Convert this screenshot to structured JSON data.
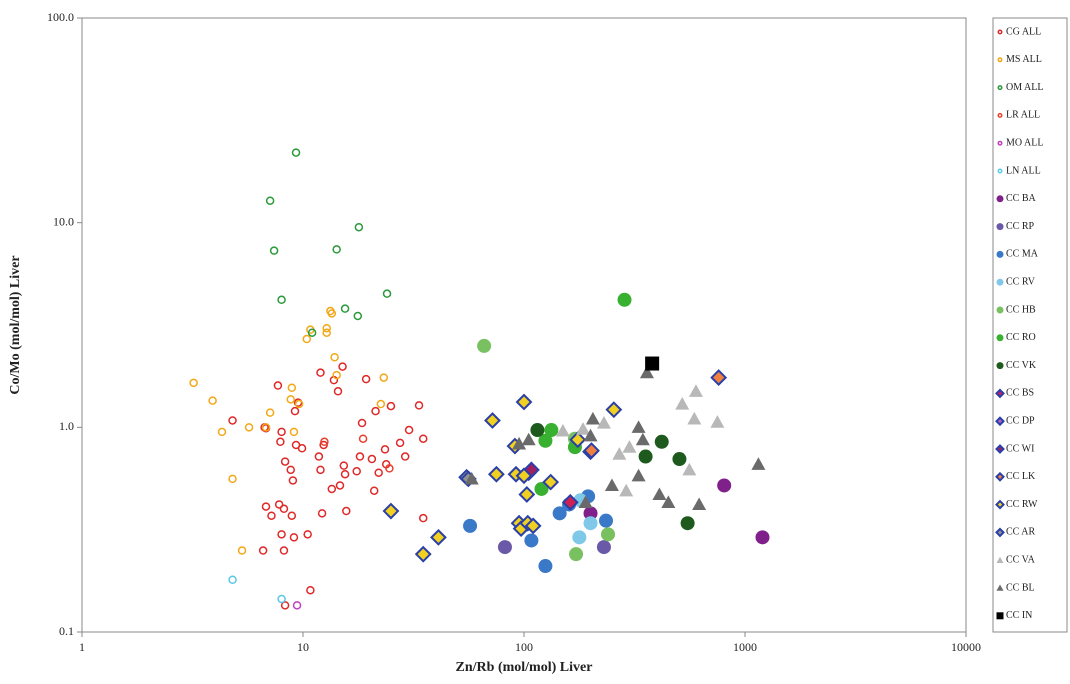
{
  "chart_data": {
    "type": "scatter",
    "x_label": "Zn/Rb (mol/mol) Liver",
    "y_label": "Co/Mo (mol/mol) Liver",
    "xlim": [
      1,
      10000
    ],
    "ylim": [
      0.1,
      100
    ],
    "log_x": true,
    "log_y": true,
    "grid": false,
    "xticks": [
      1,
      10,
      100,
      1000,
      10000
    ],
    "yticks": [
      0.1,
      {
        "value": 1,
        "label": "1.0"
      },
      {
        "value": 10,
        "label": "10.0"
      },
      {
        "value": 100,
        "label": "100.0"
      }
    ],
    "legend": "right",
    "series": [
      {
        "name": "CG ALL",
        "color": "#e02828",
        "marker": "circle-open",
        "x": [
          4.8,
          6.7,
          6.8,
          7.7,
          8.0,
          7.9,
          8.3,
          8.8,
          9.0,
          9.3,
          9.2,
          9.5,
          9.9,
          6.8,
          7.2,
          7.8,
          8.2,
          8.9,
          8.0,
          9.1,
          10.5,
          12.2,
          12.0,
          11.8,
          12.4,
          12.0,
          13.5,
          13.8,
          14.4,
          14.7,
          15.3,
          15.5,
          15.7,
          15.1,
          17.5,
          18.1,
          18.5,
          19.3,
          20.5,
          21.0,
          21.3,
          22.0,
          23.8,
          23.5,
          25.0,
          27.5,
          29.0,
          30.2,
          33.5,
          35.0,
          35.0,
          6.6,
          8.2,
          10.8,
          8.3
        ],
        "values": [
          1.08,
          1.0,
          0.99,
          1.6,
          0.95,
          0.85,
          0.68,
          0.62,
          0.55,
          0.82,
          1.2,
          1.32,
          0.79,
          0.41,
          0.37,
          0.42,
          0.4,
          0.37,
          0.3,
          0.29,
          0.3,
          0.38,
          0.62,
          0.72,
          0.82,
          1.85,
          0.5,
          1.7,
          1.5,
          0.52,
          0.65,
          0.59,
          0.39,
          1.98,
          0.61,
          0.72,
          1.05,
          1.72,
          0.7,
          0.49,
          1.2,
          0.6,
          0.66,
          0.78,
          1.27,
          0.84,
          0.72,
          0.97,
          1.28,
          0.88,
          0.36,
          0.25,
          0.25,
          0.16,
          0.135
        ]
      },
      {
        "name": "MS ALL",
        "color": "#f2a818",
        "marker": "circle-open",
        "x": [
          3.2,
          3.9,
          4.3,
          4.8,
          5.3,
          5.7,
          6.8,
          7.1,
          8.9,
          8.8,
          9.1,
          9.6,
          10.4,
          10.8,
          12.8,
          12.8,
          13.3,
          13.5,
          13.9,
          14.2,
          23.2,
          22.5
        ],
        "values": [
          1.65,
          1.35,
          0.95,
          0.56,
          0.25,
          1.0,
          1.0,
          1.18,
          1.56,
          1.37,
          0.95,
          1.3,
          2.7,
          3.0,
          2.9,
          3.05,
          3.7,
          3.6,
          2.2,
          1.8,
          1.75,
          1.3
        ]
      },
      {
        "name": "OM ALL",
        "color": "#2a9a3a",
        "marker": "circle-open",
        "x": [
          9.3,
          7.1,
          7.4,
          8.0,
          11.0,
          14.2,
          15.5,
          17.7,
          17.9,
          24.0
        ],
        "values": [
          22,
          12.8,
          7.3,
          4.2,
          2.9,
          7.4,
          3.8,
          3.5,
          9.5,
          4.5
        ]
      },
      {
        "name": "LR ALL",
        "color": "#e8402e",
        "marker": "circle-open",
        "x": [
          12.5,
          18.7,
          24.6
        ],
        "values": [
          0.85,
          0.88,
          0.63
        ]
      },
      {
        "name": "MO ALL",
        "color": "#c040c0",
        "marker": "circle-open",
        "x": [
          9.4
        ],
        "values": [
          0.135
        ]
      },
      {
        "name": "LN ALL",
        "color": "#5ac8e8",
        "marker": "circle-open",
        "x": [
          4.8,
          8.0
        ],
        "values": [
          0.18,
          0.145
        ]
      },
      {
        "name": "CC BA",
        "color": "#80208a",
        "marker": "circle",
        "x": [
          200,
          805,
          1200
        ],
        "values": [
          0.38,
          0.52,
          0.29
        ]
      },
      {
        "name": "CC RP",
        "color": "#6a58a8",
        "marker": "circle",
        "x": [
          82,
          230
        ],
        "values": [
          0.26,
          0.26
        ]
      },
      {
        "name": "CC MA",
        "color": "#3a78c8",
        "marker": "circle",
        "x": [
          57,
          108,
          125,
          145,
          160,
          195,
          235
        ],
        "values": [
          0.33,
          0.28,
          0.21,
          0.38,
          0.42,
          0.46,
          0.35
        ]
      },
      {
        "name": "CC RV",
        "color": "#80c8e8",
        "marker": "circle",
        "x": [
          178,
          200,
          180
        ],
        "values": [
          0.29,
          0.34,
          0.44
        ]
      },
      {
        "name": "CC HB",
        "color": "#78c060",
        "marker": "circle",
        "x": [
          66,
          172,
          240,
          170
        ],
        "values": [
          2.5,
          0.24,
          0.3,
          0.88
        ]
      },
      {
        "name": "CC RO",
        "color": "#38b030",
        "marker": "circle",
        "x": [
          285,
          125,
          133,
          170,
          120
        ],
        "values": [
          4.2,
          0.86,
          0.97,
          0.8,
          0.5
        ]
      },
      {
        "name": "CC VK",
        "color": "#1e5a1e",
        "marker": "circle",
        "x": [
          115,
          355,
          420,
          505,
          550
        ],
        "values": [
          0.97,
          0.72,
          0.85,
          0.7,
          0.34
        ]
      },
      {
        "name": "CC BS",
        "color": "#d02050",
        "marker": "diamond",
        "edgecolor": "#2a3fa8",
        "x": [
          162,
          105
        ],
        "values": [
          0.43,
          0.6
        ]
      },
      {
        "name": "CC DP",
        "color": "#b060c0",
        "marker": "diamond",
        "edgecolor": "#2a3fa8",
        "x": [
          200
        ],
        "values": [
          0.76
        ]
      },
      {
        "name": "CC WI",
        "color": "#a02060",
        "marker": "diamond",
        "edgecolor": "#2a3fa8",
        "x": [
          108
        ],
        "values": [
          0.62
        ]
      },
      {
        "name": "CC LK",
        "color": "#f08040",
        "marker": "diamond",
        "edgecolor": "#2a3fa8",
        "x": [
          760,
          202
        ],
        "values": [
          1.75,
          0.77
        ]
      },
      {
        "name": "CC RW",
        "color": "#f0d020",
        "marker": "diamond",
        "edgecolor": "#2a3fa8",
        "x": [
          25,
          35,
          41,
          55,
          72,
          75,
          91,
          92,
          95,
          97,
          100,
          100,
          104,
          103,
          110,
          132,
          175,
          255
        ],
        "values": [
          0.39,
          0.24,
          0.29,
          0.57,
          1.08,
          0.59,
          0.81,
          0.59,
          0.34,
          0.32,
          1.33,
          0.58,
          0.34,
          0.47,
          0.33,
          0.54,
          0.87,
          1.22
        ]
      },
      {
        "name": "CC AR",
        "color": "#909090",
        "marker": "diamond",
        "edgecolor": "#2a3fa8",
        "x": [
          56
        ],
        "values": [
          0.56
        ]
      },
      {
        "name": "CC VA",
        "color": "#b8b8b8",
        "marker": "triangle",
        "x": [
          150,
          185,
          230,
          270,
          290,
          300,
          520,
          560,
          600,
          590,
          750
        ],
        "values": [
          0.96,
          0.98,
          1.05,
          0.74,
          0.49,
          0.8,
          1.3,
          0.62,
          1.5,
          1.1,
          1.06
        ]
      },
      {
        "name": "CC BL",
        "color": "#6a6a6a",
        "marker": "triangle",
        "x": [
          58,
          95,
          105,
          190,
          205,
          200,
          250,
          330,
          330,
          345,
          360,
          410,
          450,
          620,
          1150
        ],
        "values": [
          0.56,
          0.83,
          0.87,
          0.43,
          1.1,
          0.91,
          0.52,
          1.0,
          0.58,
          0.87,
          1.85,
          0.47,
          0.43,
          0.42,
          0.66
        ]
      },
      {
        "name": "CC IN",
        "color": "#000000",
        "marker": "square",
        "x": [
          380
        ],
        "values": [
          2.05
        ]
      }
    ]
  }
}
